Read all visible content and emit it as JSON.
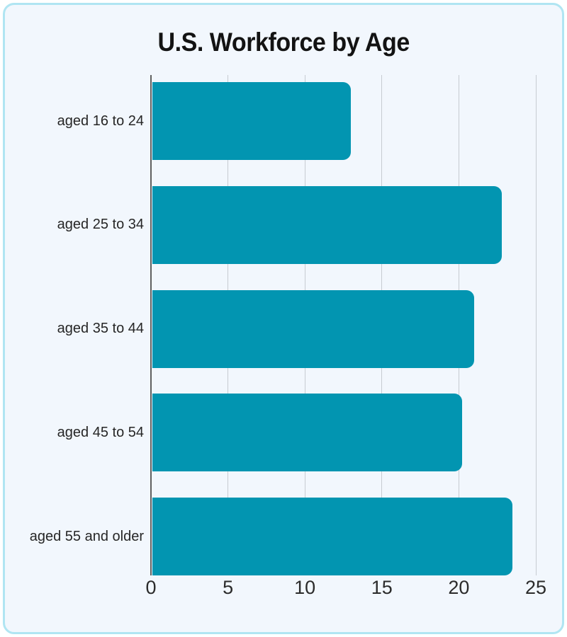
{
  "page": {
    "background_color": "#ffffff",
    "card_background_color": "#f2f7fd",
    "card_border_color": "#b0e5f2"
  },
  "chart_data": {
    "type": "bar",
    "orientation": "horizontal",
    "title": "U.S. Workforce by Age",
    "categories": [
      "aged 16 to 24",
      "aged 25 to 34",
      "aged 35 to 44",
      "aged 45 to 54",
      "aged 55 and older"
    ],
    "values": [
      12.9,
      22.7,
      20.9,
      20.1,
      23.4
    ],
    "xlabel": "",
    "ylabel": "",
    "xlim": [
      0,
      25
    ],
    "xticks": [
      0,
      5,
      10,
      15,
      20,
      25
    ],
    "grid": true,
    "legend": false,
    "bar_color": "#0295b1",
    "gridline_color": "#c7cbd1",
    "axis_line_color": "#606060"
  }
}
